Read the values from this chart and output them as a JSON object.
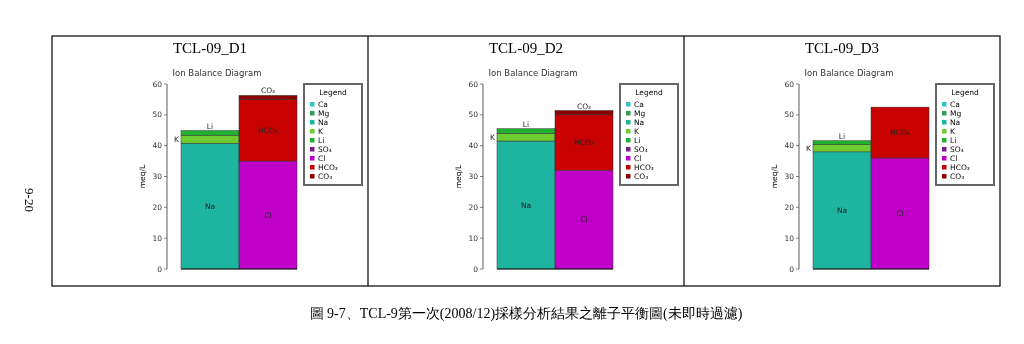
{
  "chart_data": [
    {
      "type": "bar",
      "title": "TCL-09_D1",
      "subtitle": "Ion Balance Diagram",
      "ylabel": "meq/L",
      "legend_title": "Legend",
      "categories": [
        null,
        null
      ],
      "stacked": true,
      "ylim": [
        0,
        60
      ],
      "yticks": [
        0,
        10,
        20,
        30,
        40,
        50,
        60
      ],
      "legend": "right",
      "grid": false,
      "series": [
        {
          "name": "Ca",
          "color": "#33c3c8",
          "values": [
            0,
            null
          ]
        },
        {
          "name": "Mg",
          "color": "#2e9e50",
          "values": [
            0,
            null
          ]
        },
        {
          "name": "Na",
          "color": "#1eb5a0",
          "values": [
            40.8,
            null
          ]
        },
        {
          "name": "K",
          "color": "#6ccc30",
          "values": [
            2.6,
            null
          ]
        },
        {
          "name": "Li",
          "color": "#22b030",
          "values": [
            1.5,
            null
          ]
        },
        {
          "name": "SO₄",
          "color": "#7a1a8a",
          "values": [
            null,
            0
          ]
        },
        {
          "name": "Cl",
          "color": "#c000c8",
          "values": [
            null,
            35
          ]
        },
        {
          "name": "HCO₃",
          "color": "#c80000",
          "values": [
            null,
            20
          ]
        },
        {
          "name": "CO₃",
          "color": "#8a0000",
          "values": [
            null,
            1.3
          ]
        }
      ],
      "annotations": [
        "9-20",
        "圖 9-7、TCL-9第一次(2008/12)採樣分析結果之離子平衡圖(未即時過濾)"
      ]
    },
    {
      "type": "bar",
      "title": "TCL-09_D2",
      "subtitle": "Ion Balance Diagram",
      "ylabel": "meq/L",
      "legend_title": "Legend",
      "categories": [
        null,
        null
      ],
      "stacked": true,
      "ylim": [
        0,
        60
      ],
      "yticks": [
        0,
        10,
        20,
        30,
        40,
        50,
        60
      ],
      "legend": "right",
      "grid": false,
      "series": [
        {
          "name": "Ca",
          "color": "#33c3c8",
          "values": [
            0,
            null
          ]
        },
        {
          "name": "Mg",
          "color": "#2e9e50",
          "values": [
            0,
            null
          ]
        },
        {
          "name": "Na",
          "color": "#1eb5a0",
          "values": [
            41.5,
            null
          ]
        },
        {
          "name": "K",
          "color": "#6ccc30",
          "values": [
            2.5,
            null
          ]
        },
        {
          "name": "Li",
          "color": "#22b030",
          "values": [
            1.5,
            null
          ]
        },
        {
          "name": "SO₄",
          "color": "#7a1a8a",
          "values": [
            null,
            0
          ]
        },
        {
          "name": "Cl",
          "color": "#c000c8",
          "values": [
            null,
            32
          ]
        },
        {
          "name": "HCO₃",
          "color": "#c80000",
          "values": [
            null,
            18
          ]
        },
        {
          "name": "CO₃",
          "color": "#8a0000",
          "values": [
            null,
            1.4
          ]
        }
      ]
    },
    {
      "type": "bar",
      "title": "TCL-09_D3",
      "subtitle": "Ion Balance Diagram",
      "ylabel": "meq/L",
      "legend_title": "Legend",
      "categories": [
        null,
        null
      ],
      "stacked": true,
      "ylim": [
        0,
        60
      ],
      "yticks": [
        0,
        10,
        20,
        30,
        40,
        50,
        60
      ],
      "legend": "right",
      "grid": false,
      "series": [
        {
          "name": "Ca",
          "color": "#33c3c8",
          "values": [
            0,
            null
          ]
        },
        {
          "name": "Mg",
          "color": "#2e9e50",
          "values": [
            0,
            null
          ]
        },
        {
          "name": "Na",
          "color": "#1eb5a0",
          "values": [
            38,
            null
          ]
        },
        {
          "name": "K",
          "color": "#6ccc30",
          "values": [
            2.3,
            null
          ]
        },
        {
          "name": "Li",
          "color": "#22b030",
          "values": [
            1.3,
            null
          ]
        },
        {
          "name": "SO₄",
          "color": "#7a1a8a",
          "values": [
            null,
            0
          ]
        },
        {
          "name": "Cl",
          "color": "#c000c8",
          "values": [
            null,
            36
          ]
        },
        {
          "name": "HCO₃",
          "color": "#c80000",
          "values": [
            null,
            16.5
          ]
        },
        {
          "name": "CO₃",
          "color": "#8a0000",
          "values": [
            null,
            0
          ]
        }
      ]
    }
  ]
}
